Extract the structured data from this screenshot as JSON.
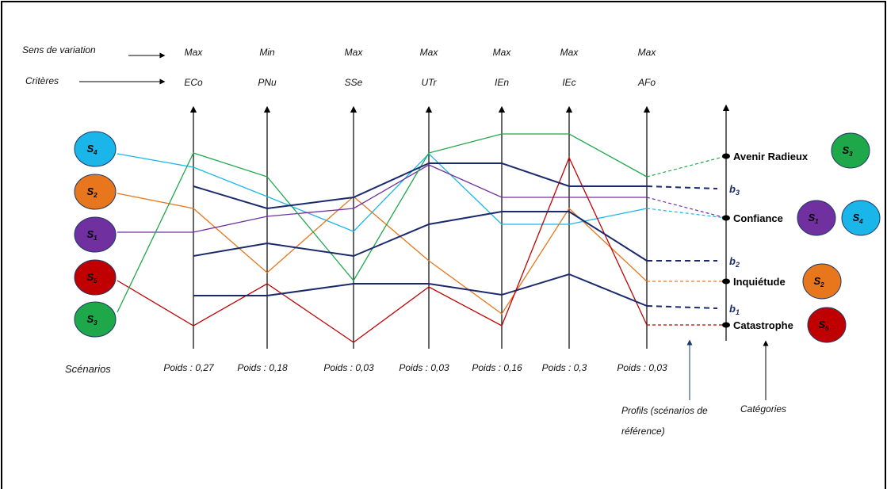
{
  "header": {
    "direction_label": "Sens de  variation",
    "criteria_label": "Critères"
  },
  "criteria": [
    {
      "code": "ECo",
      "direction": "Max",
      "weight": "Poids : 0,27"
    },
    {
      "code": "PNu",
      "direction": "Min",
      "weight": "Poids : 0,18"
    },
    {
      "code": "SSe",
      "direction": "Max",
      "weight": "Poids : 0,03"
    },
    {
      "code": "UTr",
      "direction": "Max",
      "weight": "Poids : 0,03"
    },
    {
      "code": "IEn",
      "direction": "Max",
      "weight": "Poids : 0,16"
    },
    {
      "code": "IEc",
      "direction": "Max",
      "weight": "Poids : 0,3"
    },
    {
      "code": "AFo",
      "direction": "Max",
      "weight": "Poids : 0,03"
    }
  ],
  "scenarios_label": "Scénarios",
  "scenarios": [
    {
      "id": "S4",
      "name": "S",
      "sub": "4",
      "color": "#1ab6ea"
    },
    {
      "id": "S2",
      "name": "S",
      "sub": "2",
      "color": "#e7761d"
    },
    {
      "id": "S1",
      "name": "S",
      "sub": "1",
      "color": "#7030a0"
    },
    {
      "id": "S5",
      "name": "S",
      "sub": "5",
      "color": "#c00000"
    },
    {
      "id": "S3",
      "name": "S",
      "sub": "3",
      "color": "#1fa84a"
    }
  ],
  "profiles": [
    {
      "name": "b",
      "sub": "3"
    },
    {
      "name": "b",
      "sub": "2"
    },
    {
      "name": "b",
      "sub": "1"
    }
  ],
  "categories": [
    {
      "label": "Avenir Radieux",
      "members": [
        "S3"
      ]
    },
    {
      "label": "Confiance",
      "members": [
        "S1",
        "S4"
      ]
    },
    {
      "label": "Inquiétude",
      "members": [
        "S2"
      ]
    },
    {
      "label": "Catastrophe",
      "members": [
        "S5"
      ]
    }
  ],
  "footer": {
    "profiles_label_line1": "Profils (scénarios de",
    "profiles_label_line2": "référence)",
    "categories_label": "Catégories"
  },
  "colors": {
    "profile_line": "#1a2a6c",
    "S1": "#7030a0",
    "S2": "#e7761d",
    "S3": "#1fa84a",
    "S4": "#1ab6ea",
    "S5": "#c00000"
  }
}
